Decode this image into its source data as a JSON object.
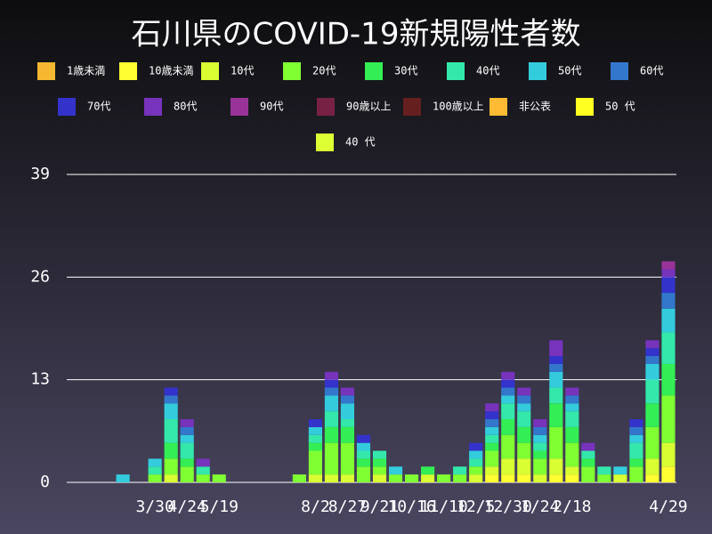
{
  "chart_data": {
    "type": "stacked-bar",
    "title": "石川県のCOVID-19新規陽性者数",
    "categories": [
      null,
      null,
      null,
      null,
      null,
      "3/30",
      null,
      "4/24",
      null,
      "5/19",
      null,
      null,
      null,
      null,
      null,
      "8/2",
      null,
      "8/27",
      null,
      "9/21",
      null,
      "10/16",
      null,
      "11/10",
      null,
      "12/5",
      null,
      "12/30",
      null,
      "1/24",
      null,
      "2/18",
      null,
      null,
      null,
      null,
      null,
      "4/29"
    ],
    "series": [
      {
        "name": "1歳未満",
        "color": "#f5b830",
        "values": [
          0,
          0,
          0,
          0,
          0,
          0,
          0,
          0,
          0,
          0,
          0,
          0,
          0,
          0,
          0,
          0,
          0,
          0,
          0,
          0,
          0,
          0,
          0,
          0,
          0,
          0,
          0,
          0,
          0,
          0,
          0,
          0,
          0,
          0,
          0,
          0,
          0,
          0
        ]
      },
      {
        "name": "10歳未満",
        "color": "#ffff33",
        "values": [
          0,
          0,
          0,
          0,
          0,
          0,
          0,
          0,
          0,
          0,
          0,
          0,
          0,
          0,
          0,
          0,
          0,
          0,
          0,
          0,
          0,
          0,
          0,
          0,
          0,
          0,
          1,
          1,
          1,
          0,
          1,
          1,
          0,
          0,
          0,
          0,
          1,
          2
        ]
      },
      {
        "name": "10代",
        "color": "#d9ff33",
        "values": [
          0,
          0,
          0,
          0,
          0,
          0,
          1,
          0,
          0,
          0,
          0,
          0,
          0,
          0,
          0,
          1,
          1,
          1,
          0,
          1,
          0,
          0,
          1,
          0,
          0,
          1,
          1,
          2,
          2,
          1,
          2,
          1,
          0,
          0,
          1,
          0,
          2,
          3
        ]
      },
      {
        "name": "20代",
        "color": "#80ff33",
        "values": [
          0,
          0,
          0,
          0,
          0,
          1,
          2,
          2,
          1,
          1,
          0,
          0,
          0,
          0,
          1,
          3,
          4,
          4,
          2,
          1,
          1,
          1,
          0,
          1,
          1,
          1,
          2,
          3,
          2,
          2,
          4,
          3,
          2,
          1,
          0,
          2,
          4,
          6
        ]
      },
      {
        "name": "30代",
        "color": "#33ee55",
        "values": [
          0,
          0,
          0,
          0,
          0,
          0,
          2,
          1,
          0,
          0,
          0,
          0,
          0,
          0,
          0,
          1,
          2,
          2,
          1,
          1,
          0,
          0,
          1,
          0,
          0,
          0,
          1,
          2,
          2,
          1,
          3,
          2,
          1,
          0,
          0,
          1,
          3,
          4
        ]
      },
      {
        "name": "40代",
        "color": "#33e8aa",
        "values": [
          0,
          0,
          0,
          0,
          0,
          1,
          3,
          2,
          1,
          0,
          0,
          0,
          0,
          0,
          0,
          1,
          2,
          1,
          1,
          1,
          0,
          0,
          0,
          0,
          1,
          1,
          1,
          2,
          2,
          1,
          2,
          2,
          1,
          1,
          0,
          2,
          3,
          4
        ]
      },
      {
        "name": "50代",
        "color": "#33ccdd",
        "values": [
          0,
          0,
          0,
          1,
          0,
          1,
          2,
          1,
          0,
          0,
          0,
          0,
          0,
          0,
          0,
          1,
          2,
          2,
          1,
          0,
          1,
          0,
          0,
          0,
          0,
          1,
          1,
          1,
          1,
          1,
          2,
          1,
          0,
          0,
          1,
          1,
          2,
          3
        ]
      },
      {
        "name": "60代",
        "color": "#3377cc",
        "values": [
          0,
          0,
          0,
          0,
          0,
          0,
          1,
          1,
          0,
          0,
          0,
          0,
          0,
          0,
          0,
          0,
          1,
          1,
          0,
          0,
          0,
          0,
          0,
          0,
          0,
          0,
          1,
          1,
          1,
          1,
          1,
          1,
          0,
          0,
          0,
          1,
          1,
          2
        ]
      },
      {
        "name": "70代",
        "color": "#3333cc",
        "values": [
          0,
          0,
          0,
          0,
          0,
          0,
          1,
          0,
          0,
          0,
          0,
          0,
          0,
          0,
          0,
          1,
          1,
          0,
          1,
          0,
          0,
          0,
          0,
          0,
          0,
          1,
          1,
          1,
          0,
          0,
          1,
          0,
          0,
          0,
          0,
          1,
          1,
          2
        ]
      },
      {
        "name": "80代",
        "color": "#7733bb",
        "values": [
          0,
          0,
          0,
          0,
          0,
          0,
          0,
          1,
          1,
          0,
          0,
          0,
          0,
          0,
          0,
          0,
          1,
          1,
          0,
          0,
          0,
          0,
          0,
          0,
          0,
          0,
          1,
          1,
          1,
          1,
          2,
          1,
          1,
          0,
          0,
          0,
          1,
          1
        ]
      },
      {
        "name": "90代",
        "color": "#993399",
        "values": [
          0,
          0,
          0,
          0,
          0,
          0,
          0,
          0,
          0,
          0,
          0,
          0,
          0,
          0,
          0,
          0,
          0,
          0,
          0,
          0,
          0,
          0,
          0,
          0,
          0,
          0,
          0,
          0,
          0,
          0,
          0,
          0,
          0,
          0,
          0,
          0,
          0,
          1
        ]
      },
      {
        "name": "90歳以上",
        "color": "#772244",
        "values": [
          0,
          0,
          0,
          0,
          0,
          0,
          0,
          0,
          0,
          0,
          0,
          0,
          0,
          0,
          0,
          0,
          0,
          0,
          0,
          0,
          0,
          0,
          0,
          0,
          0,
          0,
          0,
          0,
          0,
          0,
          0,
          0,
          0,
          0,
          0,
          0,
          0,
          0
        ]
      },
      {
        "name": "100歳以上",
        "color": "#661f1f",
        "values": [
          0,
          0,
          0,
          0,
          0,
          0,
          0,
          0,
          0,
          0,
          0,
          0,
          0,
          0,
          0,
          0,
          0,
          0,
          0,
          0,
          0,
          0,
          0,
          0,
          0,
          0,
          0,
          0,
          0,
          0,
          0,
          0,
          0,
          0,
          0,
          0,
          0,
          0
        ]
      },
      {
        "name": "非公表",
        "color": "#ffbb33",
        "values": [
          0,
          0,
          0,
          0,
          0,
          0,
          0,
          0,
          0,
          0,
          0,
          0,
          0,
          0,
          0,
          0,
          0,
          0,
          0,
          0,
          0,
          0,
          0,
          0,
          0,
          0,
          0,
          0,
          0,
          0,
          0,
          0,
          0,
          0,
          0,
          0,
          0,
          0
        ]
      },
      {
        "name": "50 代",
        "color": "#ffff22",
        "values": [
          0,
          0,
          0,
          0,
          0,
          0,
          0,
          0,
          0,
          0,
          0,
          0,
          0,
          0,
          0,
          0,
          0,
          0,
          0,
          0,
          0,
          0,
          0,
          0,
          0,
          0,
          0,
          0,
          0,
          0,
          0,
          0,
          0,
          0,
          0,
          0,
          0,
          0
        ]
      },
      {
        "name": "40 代",
        "color": "#ddff33",
        "values": [
          0,
          0,
          0,
          0,
          0,
          0,
          0,
          0,
          0,
          0,
          0,
          0,
          0,
          0,
          0,
          0,
          0,
          0,
          0,
          0,
          0,
          0,
          0,
          0,
          0,
          0,
          0,
          0,
          0,
          0,
          0,
          0,
          0,
          0,
          0,
          0,
          0,
          0
        ]
      }
    ],
    "ylim": [
      0,
      39
    ],
    "yticks": [
      0,
      13,
      26,
      39
    ],
    "grid": true
  }
}
